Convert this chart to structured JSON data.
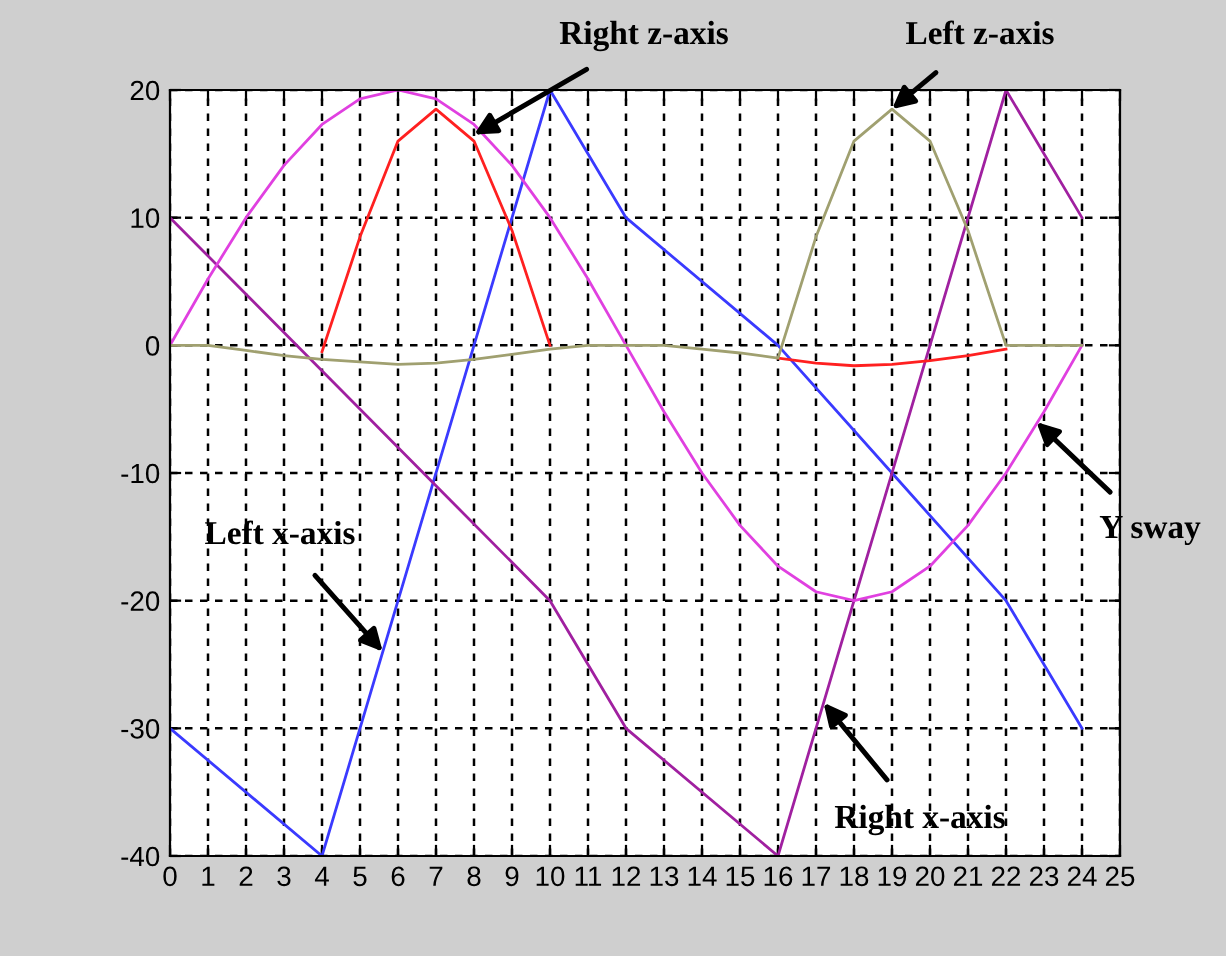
{
  "chart_data": {
    "type": "line",
    "xlim": [
      0,
      25
    ],
    "ylim": [
      -40,
      20
    ],
    "xticks": [
      0,
      1,
      2,
      3,
      4,
      5,
      6,
      7,
      8,
      9,
      10,
      11,
      12,
      13,
      14,
      15,
      16,
      17,
      18,
      19,
      20,
      21,
      22,
      23,
      24,
      25
    ],
    "yticks": [
      -40,
      -30,
      -20,
      -10,
      0,
      10,
      20
    ],
    "grid": true,
    "legend": false,
    "x": [
      0,
      1,
      2,
      3,
      4,
      5,
      6,
      7,
      8,
      9,
      10,
      11,
      12,
      13,
      14,
      15,
      16,
      17,
      18,
      19,
      20,
      21,
      22,
      23,
      24
    ],
    "series": [
      {
        "color": "#3a3aff",
        "x": [
          0,
          4,
          10,
          12,
          16,
          19,
          22,
          24
        ],
        "values": [
          -30,
          -40,
          20,
          10,
          0,
          -10,
          -20,
          -30
        ]
      },
      {
        "color": "#a020a0",
        "x": [
          0,
          10,
          12,
          16,
          22,
          24
        ],
        "values": [
          10,
          -20,
          -30,
          -40,
          20,
          10
        ]
      },
      {
        "color": "#e040e0",
        "values": [
          0,
          5.2,
          10,
          14.1,
          17.3,
          19.3,
          20,
          19.3,
          17.3,
          14.1,
          10,
          5.2,
          0,
          -5.2,
          -10,
          -14.1,
          -17.3,
          -19.3,
          -20,
          -19.3,
          -17.3,
          -14.1,
          -10,
          -5.2,
          0
        ]
      },
      {
        "color": "#ff2020",
        "values": [
          null,
          null,
          null,
          null,
          -0.5,
          8.5,
          16,
          18.5,
          16,
          9,
          0,
          null,
          null,
          null,
          null,
          null,
          -1,
          -1.4,
          -1.6,
          -1.5,
          -1.2,
          -0.8,
          -0.3,
          null,
          null
        ]
      },
      {
        "color": "#a0a070",
        "values": [
          0,
          0,
          -0.4,
          -0.8,
          -1.1,
          -1.3,
          -1.5,
          -1.4,
          -1.1,
          -0.7,
          -0.3,
          0,
          0,
          0,
          -0.3,
          -0.6,
          -1,
          8.5,
          16,
          18.5,
          16,
          9,
          0,
          0,
          0
        ]
      }
    ],
    "annotations": [
      {
        "text": "Right z-axis",
        "x": 8,
        "y": 16.5
      },
      {
        "text": "Left z-axis",
        "x": 19,
        "y": 18.5
      },
      {
        "text": "Left x-axis",
        "x": 5.6,
        "y": -24
      },
      {
        "text": "Right x-axis",
        "x": 17.2,
        "y": -28
      },
      {
        "text": "Y sway",
        "x": 22.8,
        "y": -6
      }
    ]
  }
}
